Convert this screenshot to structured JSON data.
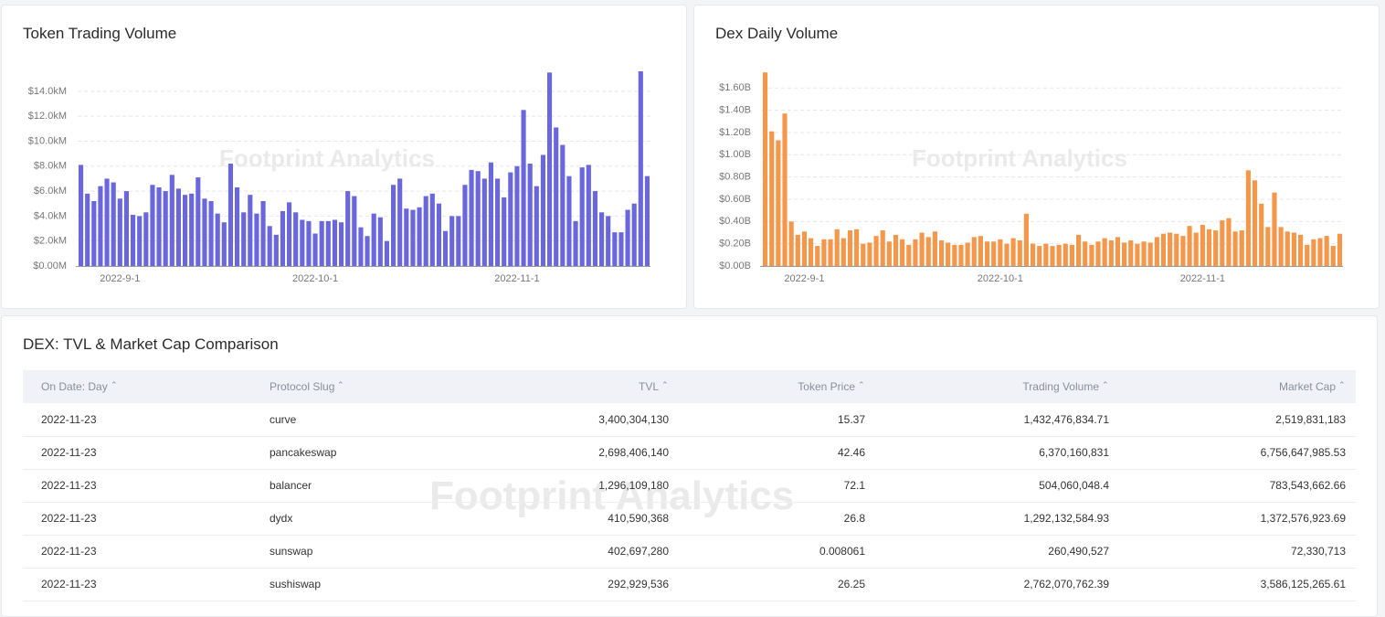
{
  "chart_data": [
    {
      "type": "bar",
      "title": "Token Trading Volume",
      "color": "#6a67dd",
      "grid": true,
      "ylim": [
        0,
        15600
      ],
      "yticks": [
        {
          "value": 0,
          "label": "$0.00M"
        },
        {
          "value": 2000,
          "label": "$2.0kM"
        },
        {
          "value": 4000,
          "label": "$4.0kM"
        },
        {
          "value": 6000,
          "label": "$6.0kM"
        },
        {
          "value": 8000,
          "label": "$8.0kM"
        },
        {
          "value": 10000,
          "label": "$10.0kM"
        },
        {
          "value": 12000,
          "label": "$12.0kM"
        },
        {
          "value": 14000,
          "label": "$14.0kM"
        }
      ],
      "categories": [
        null,
        null,
        null,
        null,
        null,
        null,
        "2022-9-1",
        null,
        null,
        null,
        null,
        null,
        null,
        null,
        null,
        null,
        null,
        null,
        null,
        null,
        null,
        null,
        null,
        null,
        null,
        null,
        null,
        null,
        null,
        null,
        null,
        null,
        null,
        null,
        null,
        null,
        "2022-10-1",
        null,
        null,
        null,
        null,
        null,
        null,
        null,
        null,
        null,
        null,
        null,
        null,
        null,
        null,
        null,
        null,
        null,
        null,
        null,
        null,
        null,
        null,
        null,
        null,
        null,
        null,
        null,
        null,
        null,
        null,
        "2022-11-1",
        null,
        null,
        null,
        null,
        null,
        null,
        null,
        null,
        null,
        null,
        null,
        null,
        null,
        null,
        null,
        null,
        null,
        null,
        null,
        null
      ],
      "values": [
        8100,
        5800,
        5200,
        6400,
        7000,
        6700,
        5400,
        6000,
        4100,
        4000,
        4300,
        6500,
        6300,
        6000,
        7300,
        6200,
        5700,
        5800,
        7100,
        5400,
        5200,
        4200,
        3500,
        8200,
        6300,
        4300,
        5700,
        4200,
        5200,
        3200,
        2500,
        4400,
        5100,
        4300,
        3700,
        3600,
        2600,
        3600,
        3600,
        3700,
        3500,
        6000,
        5600,
        3100,
        2400,
        4200,
        3900,
        2000,
        6500,
        7000,
        4600,
        4500,
        4700,
        5600,
        5800,
        5000,
        2800,
        4000,
        4000,
        6500,
        7700,
        7600,
        7000,
        8300,
        7000,
        5500,
        7500,
        8000,
        12500,
        8200,
        6400,
        8900,
        15500,
        11100,
        9700,
        7200,
        3600,
        7900,
        8100,
        6000,
        4300,
        4000,
        2700,
        2700,
        4500,
        5000,
        15600,
        7200
      ]
    },
    {
      "type": "bar",
      "title": "Dex Daily Volume",
      "color": "#f4974a",
      "grid": true,
      "ylim": [
        0,
        1.75
      ],
      "yticks": [
        {
          "value": 0,
          "label": "$0.00B"
        },
        {
          "value": 0.2,
          "label": "$0.20B"
        },
        {
          "value": 0.4,
          "label": "$0.40B"
        },
        {
          "value": 0.6,
          "label": "$0.60B"
        },
        {
          "value": 0.8,
          "label": "$0.80B"
        },
        {
          "value": 1.0,
          "label": "$1.00B"
        },
        {
          "value": 1.2,
          "label": "$1.20B"
        },
        {
          "value": 1.4,
          "label": "$1.40B"
        },
        {
          "value": 1.6,
          "label": "$1.60B"
        }
      ],
      "categories": [
        null,
        null,
        null,
        null,
        null,
        null,
        "2022-9-1",
        null,
        null,
        null,
        null,
        null,
        null,
        null,
        null,
        null,
        null,
        null,
        null,
        null,
        null,
        null,
        null,
        null,
        null,
        null,
        null,
        null,
        null,
        null,
        null,
        null,
        null,
        null,
        null,
        null,
        "2022-10-1",
        null,
        null,
        null,
        null,
        null,
        null,
        null,
        null,
        null,
        null,
        null,
        null,
        null,
        null,
        null,
        null,
        null,
        null,
        null,
        null,
        null,
        null,
        null,
        null,
        null,
        null,
        null,
        null,
        null,
        null,
        "2022-11-1",
        null,
        null,
        null,
        null,
        null,
        null,
        null,
        null,
        null,
        null,
        null,
        null,
        null,
        null,
        null,
        null,
        null,
        null,
        null,
        null,
        null
      ],
      "values": [
        1.74,
        1.21,
        1.13,
        1.37,
        0.4,
        0.28,
        0.31,
        0.25,
        0.18,
        0.24,
        0.24,
        0.33,
        0.25,
        0.32,
        0.33,
        0.2,
        0.21,
        0.27,
        0.32,
        0.22,
        0.28,
        0.24,
        0.19,
        0.24,
        0.3,
        0.26,
        0.31,
        0.23,
        0.21,
        0.19,
        0.19,
        0.21,
        0.26,
        0.27,
        0.22,
        0.22,
        0.24,
        0.2,
        0.25,
        0.23,
        0.47,
        0.2,
        0.18,
        0.2,
        0.18,
        0.19,
        0.2,
        0.19,
        0.28,
        0.22,
        0.19,
        0.22,
        0.25,
        0.23,
        0.26,
        0.21,
        0.23,
        0.2,
        0.22,
        0.21,
        0.26,
        0.29,
        0.3,
        0.29,
        0.27,
        0.36,
        0.3,
        0.37,
        0.33,
        0.32,
        0.41,
        0.43,
        0.31,
        0.32,
        0.86,
        0.77,
        0.56,
        0.35,
        0.66,
        0.35,
        0.31,
        0.3,
        0.28,
        0.19,
        0.24,
        0.25,
        0.27,
        0.18,
        0.29
      ]
    }
  ],
  "watermark": "Footprint Analytics",
  "table": {
    "title": "DEX: TVL & Market Cap Comparison",
    "columns": [
      "On Date: Day",
      "Protocol Slug",
      "TVL",
      "Token Price",
      "Trading Volume",
      "Market Cap"
    ],
    "rows": [
      [
        "2022-11-23",
        "curve",
        "3,400,304,130",
        "15.37",
        "1,432,476,834.71",
        "2,519,831,183"
      ],
      [
        "2022-11-23",
        "pancakeswap",
        "2,698,406,140",
        "42.46",
        "6,370,160,831",
        "6,756,647,985.53"
      ],
      [
        "2022-11-23",
        "balancer",
        "1,296,109,180",
        "72.1",
        "504,060,048.4",
        "783,543,662.66"
      ],
      [
        "2022-11-23",
        "dydx",
        "410,590,368",
        "26.8",
        "1,292,132,584.93",
        "1,372,576,923.69"
      ],
      [
        "2022-11-23",
        "sunswap",
        "402,697,280",
        "0.008061",
        "260,490,527",
        "72,330,713"
      ],
      [
        "2022-11-23",
        "sushiswap",
        "292,929,536",
        "26.25",
        "2,762,070,762.39",
        "3,586,125,265.61"
      ]
    ]
  }
}
